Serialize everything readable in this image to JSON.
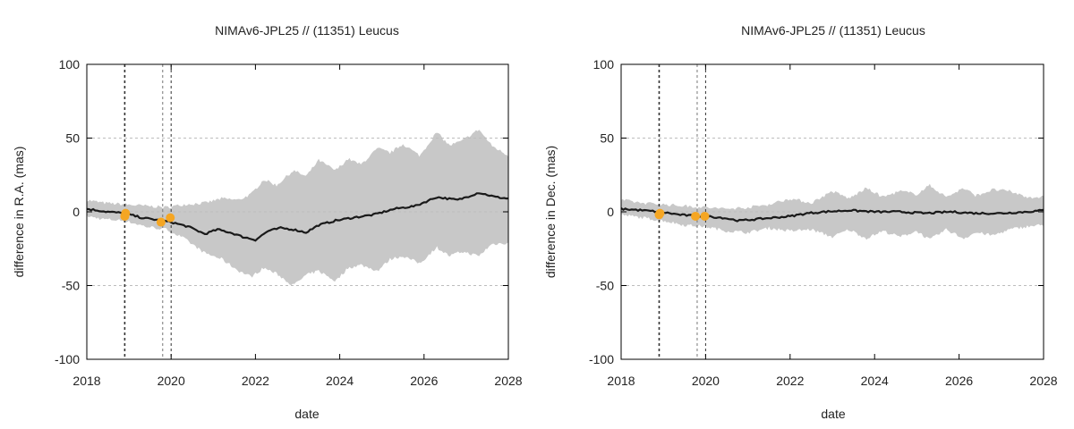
{
  "colors": {
    "band": "#c8c8c8",
    "line": "#1a1a1a",
    "marker": "#f5a623",
    "grid": "#bdbdbd",
    "vline": "#333333"
  },
  "chart_data": [
    {
      "type": "line",
      "title": "NIMAv6-JPL25 // (11351) Leucus",
      "xlabel": "date",
      "ylabel": "difference in R.A. (mas)",
      "xlim": [
        2018,
        2028
      ],
      "ylim": [
        -100,
        100
      ],
      "xticks": [
        2018,
        2020,
        2022,
        2024,
        2026,
        2028
      ],
      "yticks": [
        -100,
        -50,
        0,
        50,
        100
      ],
      "grid": "horizontal dashed",
      "vertical_lines": [
        2018.9,
        2019.8,
        2020.0
      ],
      "series": [
        {
          "role": "mean",
          "x": [
            2018.0,
            2018.5,
            2018.9,
            2019.3,
            2019.8,
            2020.0,
            2020.4,
            2020.8,
            2021.1,
            2021.4,
            2021.7,
            2022.0,
            2022.3,
            2022.6,
            2022.9,
            2023.2,
            2023.5,
            2023.9,
            2024.3,
            2024.8,
            2025.3,
            2025.8,
            2026.3,
            2026.8,
            2027.3,
            2027.7,
            2028.0
          ],
          "y": [
            2,
            0,
            -1,
            -4,
            -6,
            -7,
            -10,
            -15,
            -12,
            -14,
            -17,
            -19,
            -13,
            -11,
            -12,
            -14,
            -9,
            -6,
            -4,
            -2,
            2,
            4,
            10,
            8,
            13,
            10,
            9
          ]
        },
        {
          "role": "uncertainty-upper",
          "x": [
            2018.0,
            2018.4,
            2018.9,
            2019.4,
            2019.9,
            2020.3,
            2020.8,
            2021.2,
            2021.6,
            2021.9,
            2022.2,
            2022.5,
            2022.9,
            2023.2,
            2023.5,
            2023.9,
            2024.2,
            2024.5,
            2024.9,
            2025.2,
            2025.5,
            2025.9,
            2026.3,
            2026.6,
            2026.9,
            2027.3,
            2027.6,
            2028.0
          ],
          "y": [
            8,
            6,
            5,
            4,
            3,
            5,
            6,
            9,
            8,
            12,
            22,
            18,
            28,
            24,
            35,
            28,
            36,
            32,
            43,
            40,
            46,
            38,
            54,
            45,
            48,
            56,
            45,
            38
          ]
        },
        {
          "role": "uncertainty-lower",
          "x": [
            2018.0,
            2018.4,
            2018.9,
            2019.4,
            2019.9,
            2020.3,
            2020.8,
            2021.2,
            2021.6,
            2021.9,
            2022.2,
            2022.5,
            2022.9,
            2023.2,
            2023.5,
            2023.9,
            2024.2,
            2024.5,
            2024.9,
            2025.2,
            2025.5,
            2025.9,
            2026.3,
            2026.6,
            2026.9,
            2027.3,
            2027.6,
            2028.0
          ],
          "y": [
            -3,
            -5,
            -6,
            -10,
            -12,
            -18,
            -28,
            -32,
            -40,
            -44,
            -38,
            -42,
            -50,
            -43,
            -40,
            -47,
            -38,
            -36,
            -40,
            -32,
            -30,
            -35,
            -24,
            -30,
            -27,
            -30,
            -22,
            -21
          ]
        },
        {
          "role": "observations",
          "x": [
            2018.9,
            2018.92,
            2019.76,
            2019.98
          ],
          "y": [
            -3,
            -1,
            -7,
            -4
          ]
        }
      ]
    },
    {
      "type": "line",
      "title": "NIMAv6-JPL25 // (11351) Leucus",
      "xlabel": "date",
      "ylabel": "difference in Dec. (mas)",
      "xlim": [
        2018,
        2028
      ],
      "ylim": [
        -100,
        100
      ],
      "xticks": [
        2018,
        2020,
        2022,
        2024,
        2026,
        2028
      ],
      "yticks": [
        -100,
        -50,
        0,
        50,
        100
      ],
      "grid": "horizontal dashed",
      "vertical_lines": [
        2018.9,
        2019.8,
        2020.0
      ],
      "series": [
        {
          "role": "mean",
          "x": [
            2018.0,
            2018.5,
            2018.9,
            2019.4,
            2019.8,
            2020.0,
            2020.4,
            2020.8,
            2021.2,
            2021.6,
            2022.0,
            2022.4,
            2022.8,
            2023.4,
            2024.0,
            2024.6,
            2025.2,
            2025.8,
            2026.4,
            2027.0,
            2027.6,
            2028.0
          ],
          "y": [
            2,
            1,
            0,
            -2,
            -3,
            -3,
            -4,
            -6,
            -5,
            -4,
            -3,
            -1,
            0,
            1,
            0,
            0,
            -1,
            0,
            -1,
            -1,
            0,
            1
          ]
        },
        {
          "role": "uncertainty-upper",
          "x": [
            2018.0,
            2018.5,
            2019.0,
            2019.5,
            2020.0,
            2020.5,
            2021.0,
            2021.5,
            2022.0,
            2022.5,
            2023.0,
            2023.4,
            2023.8,
            2024.2,
            2024.6,
            2025.0,
            2025.3,
            2025.7,
            2026.1,
            2026.4,
            2026.8,
            2027.2,
            2027.6,
            2028.0
          ],
          "y": [
            8,
            6,
            5,
            4,
            3,
            2,
            3,
            5,
            9,
            6,
            14,
            9,
            16,
            10,
            14,
            12,
            18,
            10,
            16,
            11,
            15,
            14,
            10,
            10
          ]
        },
        {
          "role": "uncertainty-lower",
          "x": [
            2018.0,
            2018.5,
            2019.0,
            2019.5,
            2020.0,
            2020.5,
            2021.0,
            2021.5,
            2022.0,
            2022.5,
            2023.0,
            2023.4,
            2023.8,
            2024.2,
            2024.6,
            2025.0,
            2025.3,
            2025.7,
            2026.1,
            2026.4,
            2026.8,
            2027.2,
            2027.6,
            2028.0
          ],
          "y": [
            -2,
            -4,
            -6,
            -9,
            -10,
            -13,
            -14,
            -11,
            -13,
            -12,
            -17,
            -12,
            -18,
            -13,
            -17,
            -13,
            -19,
            -12,
            -18,
            -14,
            -16,
            -12,
            -10,
            -9
          ]
        },
        {
          "role": "observations",
          "x": [
            2018.9,
            2018.92,
            2019.76,
            2019.98
          ],
          "y": [
            -2,
            -1,
            -3,
            -3
          ]
        }
      ]
    }
  ]
}
